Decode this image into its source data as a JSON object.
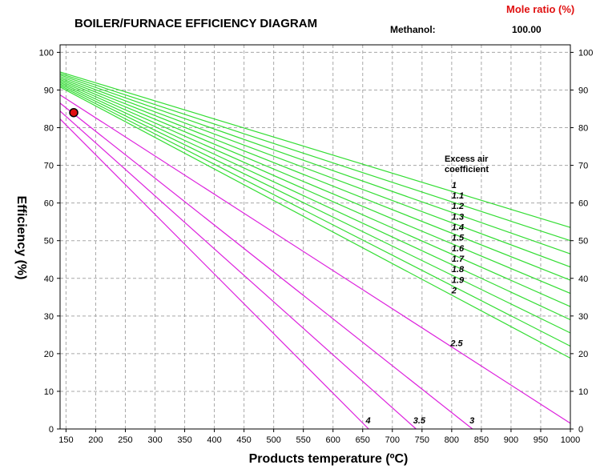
{
  "header": {
    "mole_ratio_label": "Mole ratio (%)",
    "fuel_label": "Methanol:",
    "fuel_value": "100.00"
  },
  "chart_data": {
    "type": "line",
    "title": "BOILER/FURNACE EFFICIENCY DIAGRAM",
    "xlabel": "Products temperature (ºC)",
    "ylabel": "Efficiency (%)",
    "xlim": [
      140,
      1000
    ],
    "ylim": [
      0,
      102
    ],
    "x_ticks": [
      150,
      200,
      250,
      300,
      350,
      400,
      450,
      500,
      550,
      600,
      650,
      700,
      750,
      800,
      850,
      900,
      950,
      1000
    ],
    "y_ticks": [
      0,
      10,
      20,
      30,
      40,
      50,
      60,
      70,
      80,
      90,
      100
    ],
    "grid": true,
    "annotation": [
      "Excess air",
      "coefficient"
    ],
    "marker_point": {
      "x": 163,
      "y": 84,
      "color": "#e01010"
    },
    "colors": {
      "low_excess": "#33dd33",
      "high_excess": "#dd22dd"
    },
    "series": [
      {
        "name": "1",
        "color": "#33dd33",
        "x": [
          140,
          1000
        ],
        "y": [
          94.8,
          53.5
        ]
      },
      {
        "name": "1.1",
        "color": "#33dd33",
        "x": [
          140,
          1000
        ],
        "y": [
          94.4,
          50.0
        ]
      },
      {
        "name": "1.2",
        "color": "#33dd33",
        "x": [
          140,
          1000
        ],
        "y": [
          94.0,
          46.5
        ]
      },
      {
        "name": "1.3",
        "color": "#33dd33",
        "x": [
          140,
          1000
        ],
        "y": [
          93.6,
          43.0
        ]
      },
      {
        "name": "1.4",
        "color": "#33dd33",
        "x": [
          140,
          1000
        ],
        "y": [
          93.2,
          39.5
        ]
      },
      {
        "name": "1.5",
        "color": "#33dd33",
        "x": [
          140,
          1000
        ],
        "y": [
          92.8,
          36.0
        ]
      },
      {
        "name": "1.6",
        "color": "#33dd33",
        "x": [
          140,
          1000
        ],
        "y": [
          92.4,
          32.5
        ]
      },
      {
        "name": "1.7",
        "color": "#33dd33",
        "x": [
          140,
          1000
        ],
        "y": [
          92.0,
          29.0
        ]
      },
      {
        "name": "1.8",
        "color": "#33dd33",
        "x": [
          140,
          1000
        ],
        "y": [
          91.6,
          25.5
        ]
      },
      {
        "name": "1.9",
        "color": "#33dd33",
        "x": [
          140,
          1000
        ],
        "y": [
          91.2,
          22.0
        ]
      },
      {
        "name": "2",
        "color": "#33dd33",
        "x": [
          140,
          1000
        ],
        "y": [
          90.8,
          18.8
        ]
      },
      {
        "name": "2.5",
        "color": "#dd22dd",
        "x": [
          140,
          1000
        ],
        "y": [
          88.7,
          1.5
        ]
      },
      {
        "name": "3",
        "color": "#dd22dd",
        "x": [
          140,
          835
        ],
        "y": [
          86.5,
          0
        ]
      },
      {
        "name": "3.5",
        "color": "#dd22dd",
        "x": [
          140,
          740
        ],
        "y": [
          84.4,
          0
        ]
      },
      {
        "name": "4",
        "color": "#dd22dd",
        "x": [
          140,
          660
        ],
        "y": [
          82.3,
          0
        ]
      }
    ],
    "series_labels": [
      {
        "text": "1",
        "x": 800,
        "y": 64
      },
      {
        "text": "1.1",
        "x": 800,
        "y": 61.2
      },
      {
        "text": "1.2",
        "x": 800,
        "y": 58.4
      },
      {
        "text": "1.3",
        "x": 800,
        "y": 55.6
      },
      {
        "text": "1.4",
        "x": 800,
        "y": 52.8
      },
      {
        "text": "1.5",
        "x": 800,
        "y": 50.0
      },
      {
        "text": "1.6",
        "x": 800,
        "y": 47.2
      },
      {
        "text": "1.7",
        "x": 800,
        "y": 44.4
      },
      {
        "text": "1.8",
        "x": 800,
        "y": 41.6
      },
      {
        "text": "1.9",
        "x": 800,
        "y": 38.8
      },
      {
        "text": "2",
        "x": 800,
        "y": 36.0
      },
      {
        "text": "2.5",
        "x": 798,
        "y": 22.0
      },
      {
        "text": "3",
        "x": 830,
        "y": 1.5
      },
      {
        "text": "3.5",
        "x": 735,
        "y": 1.5
      },
      {
        "text": "4",
        "x": 655,
        "y": 1.5
      }
    ]
  }
}
